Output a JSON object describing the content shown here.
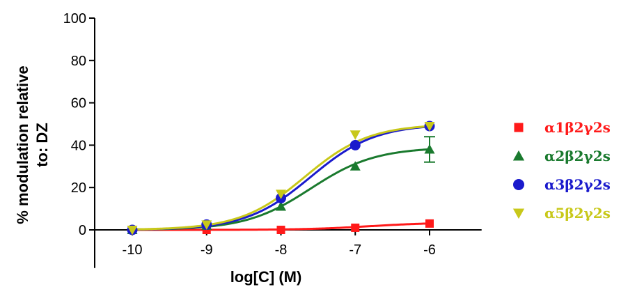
{
  "chart_data": {
    "type": "scatter",
    "xlabel": "log[C] (M)",
    "ylabel_line1": "% modulation relative",
    "ylabel_line2": "to: DZ",
    "xlim": [
      -10.5,
      -5.3
    ],
    "ylim": [
      0,
      100
    ],
    "x_ticks": [
      -10,
      -9,
      -8,
      -7,
      -6
    ],
    "y_ticks": [
      0,
      20,
      40,
      60,
      80,
      100
    ],
    "y_axis_bottom": -18,
    "grid": false,
    "legend_position": "right",
    "series": [
      {
        "name": "α1β2γ2s",
        "color": "#ff1a1a",
        "marker": "square",
        "x": [
          -10,
          -9,
          -8,
          -7,
          -6
        ],
        "y": [
          0,
          0,
          0,
          1,
          3
        ],
        "error": [
          0,
          0,
          0,
          0,
          0
        ],
        "fit": {
          "bottom": 0,
          "top": 3.5,
          "logEC50": -6.8,
          "hill": 1
        }
      },
      {
        "name": "α2β2γ2s",
        "color": "#1a7a2e",
        "marker": "triangle-up",
        "x": [
          -10,
          -9,
          -8,
          -7,
          -6
        ],
        "y": [
          0,
          2,
          11,
          30,
          38
        ],
        "error": [
          0,
          0,
          0,
          0,
          6
        ],
        "fit": {
          "bottom": 0,
          "top": 39,
          "logEC50": -7.6,
          "hill": 1
        }
      },
      {
        "name": "α3β2γ2s",
        "color": "#1a1acc",
        "marker": "circle",
        "x": [
          -10,
          -9,
          -8,
          -7,
          -6
        ],
        "y": [
          0,
          2.5,
          15,
          40,
          49
        ],
        "error": [
          0,
          0,
          0,
          0,
          0
        ],
        "fit": {
          "bottom": 0,
          "top": 50,
          "logEC50": -7.6,
          "hill": 1
        }
      },
      {
        "name": "α5β2γ2s",
        "color": "#c8c81a",
        "marker": "triangle-down",
        "x": [
          -10,
          -9,
          -8,
          -7,
          -6
        ],
        "y": [
          0,
          2.5,
          17,
          45,
          49
        ],
        "error": [
          0,
          0,
          0,
          0,
          0
        ],
        "fit": {
          "bottom": 0,
          "top": 50,
          "logEC50": -7.68,
          "hill": 1
        }
      }
    ]
  }
}
